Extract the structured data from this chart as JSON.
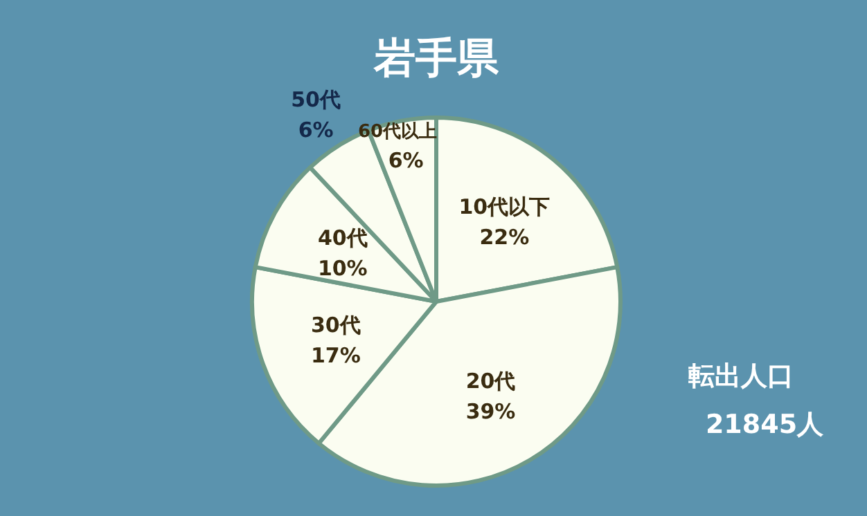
{
  "chart_data": {
    "type": "pie",
    "title": "岩手県",
    "categories": [
      "10代以下",
      "20代",
      "30代",
      "40代",
      "50代",
      "60代以上"
    ],
    "values": [
      22,
      39,
      17,
      10,
      6,
      6
    ],
    "colors": [
      "#fbfdf1",
      "#fbfdf1",
      "#fbfdf1",
      "#fbfdf1",
      "#fbfdf1",
      "#fbfdf1"
    ],
    "value_labels": [
      "22%",
      "39%",
      "17%",
      "10%",
      "6%",
      "6%"
    ],
    "annotations": [
      "転出人口",
      "21845人"
    ]
  }
}
